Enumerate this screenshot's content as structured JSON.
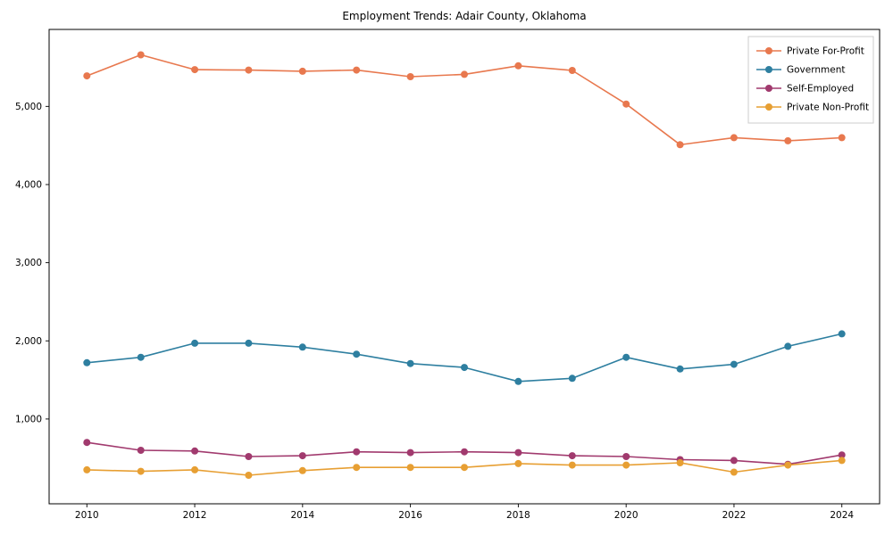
{
  "chart_data": {
    "type": "line",
    "title": "Employment Trends: Adair County, Oklahoma",
    "xlabel": "",
    "ylabel": "",
    "grid": false,
    "legend_position": "upper right",
    "xlim": [
      2009.3,
      2024.7
    ],
    "ylim": [
      -85,
      5985
    ],
    "x": [
      2010,
      2011,
      2012,
      2013,
      2014,
      2015,
      2016,
      2017,
      2018,
      2019,
      2020,
      2021,
      2022,
      2023,
      2024
    ],
    "x_ticks": [
      2010,
      2012,
      2014,
      2016,
      2018,
      2020,
      2022,
      2024
    ],
    "x_tick_labels": [
      "2010",
      "2012",
      "2014",
      "2016",
      "2018",
      "2020",
      "2022",
      "2024"
    ],
    "y_ticks": [
      1000,
      2000,
      3000,
      4000,
      5000
    ],
    "y_tick_labels": [
      "1,000",
      "2,000",
      "3,000",
      "4,000",
      "5,000"
    ],
    "series": [
      {
        "name": "Private For-Profit",
        "color": "#e8784e",
        "values": [
          5390,
          5660,
          5470,
          5465,
          5450,
          5465,
          5380,
          5410,
          5520,
          5460,
          5030,
          4510,
          4600,
          4560,
          4600
        ]
      },
      {
        "name": "Government",
        "color": "#2e7fa0",
        "values": [
          1720,
          1790,
          1970,
          1970,
          1920,
          1830,
          1710,
          1660,
          1480,
          1520,
          1790,
          1640,
          1700,
          1930,
          2090
        ]
      },
      {
        "name": "Self-Employed",
        "color": "#a13a6e",
        "values": [
          700,
          600,
          590,
          520,
          530,
          580,
          570,
          580,
          570,
          530,
          520,
          480,
          470,
          420,
          540
        ]
      },
      {
        "name": "Private Non-Profit",
        "color": "#e79f33",
        "values": [
          350,
          330,
          350,
          280,
          340,
          380,
          380,
          380,
          430,
          410,
          410,
          440,
          320,
          410,
          470
        ]
      }
    ]
  }
}
